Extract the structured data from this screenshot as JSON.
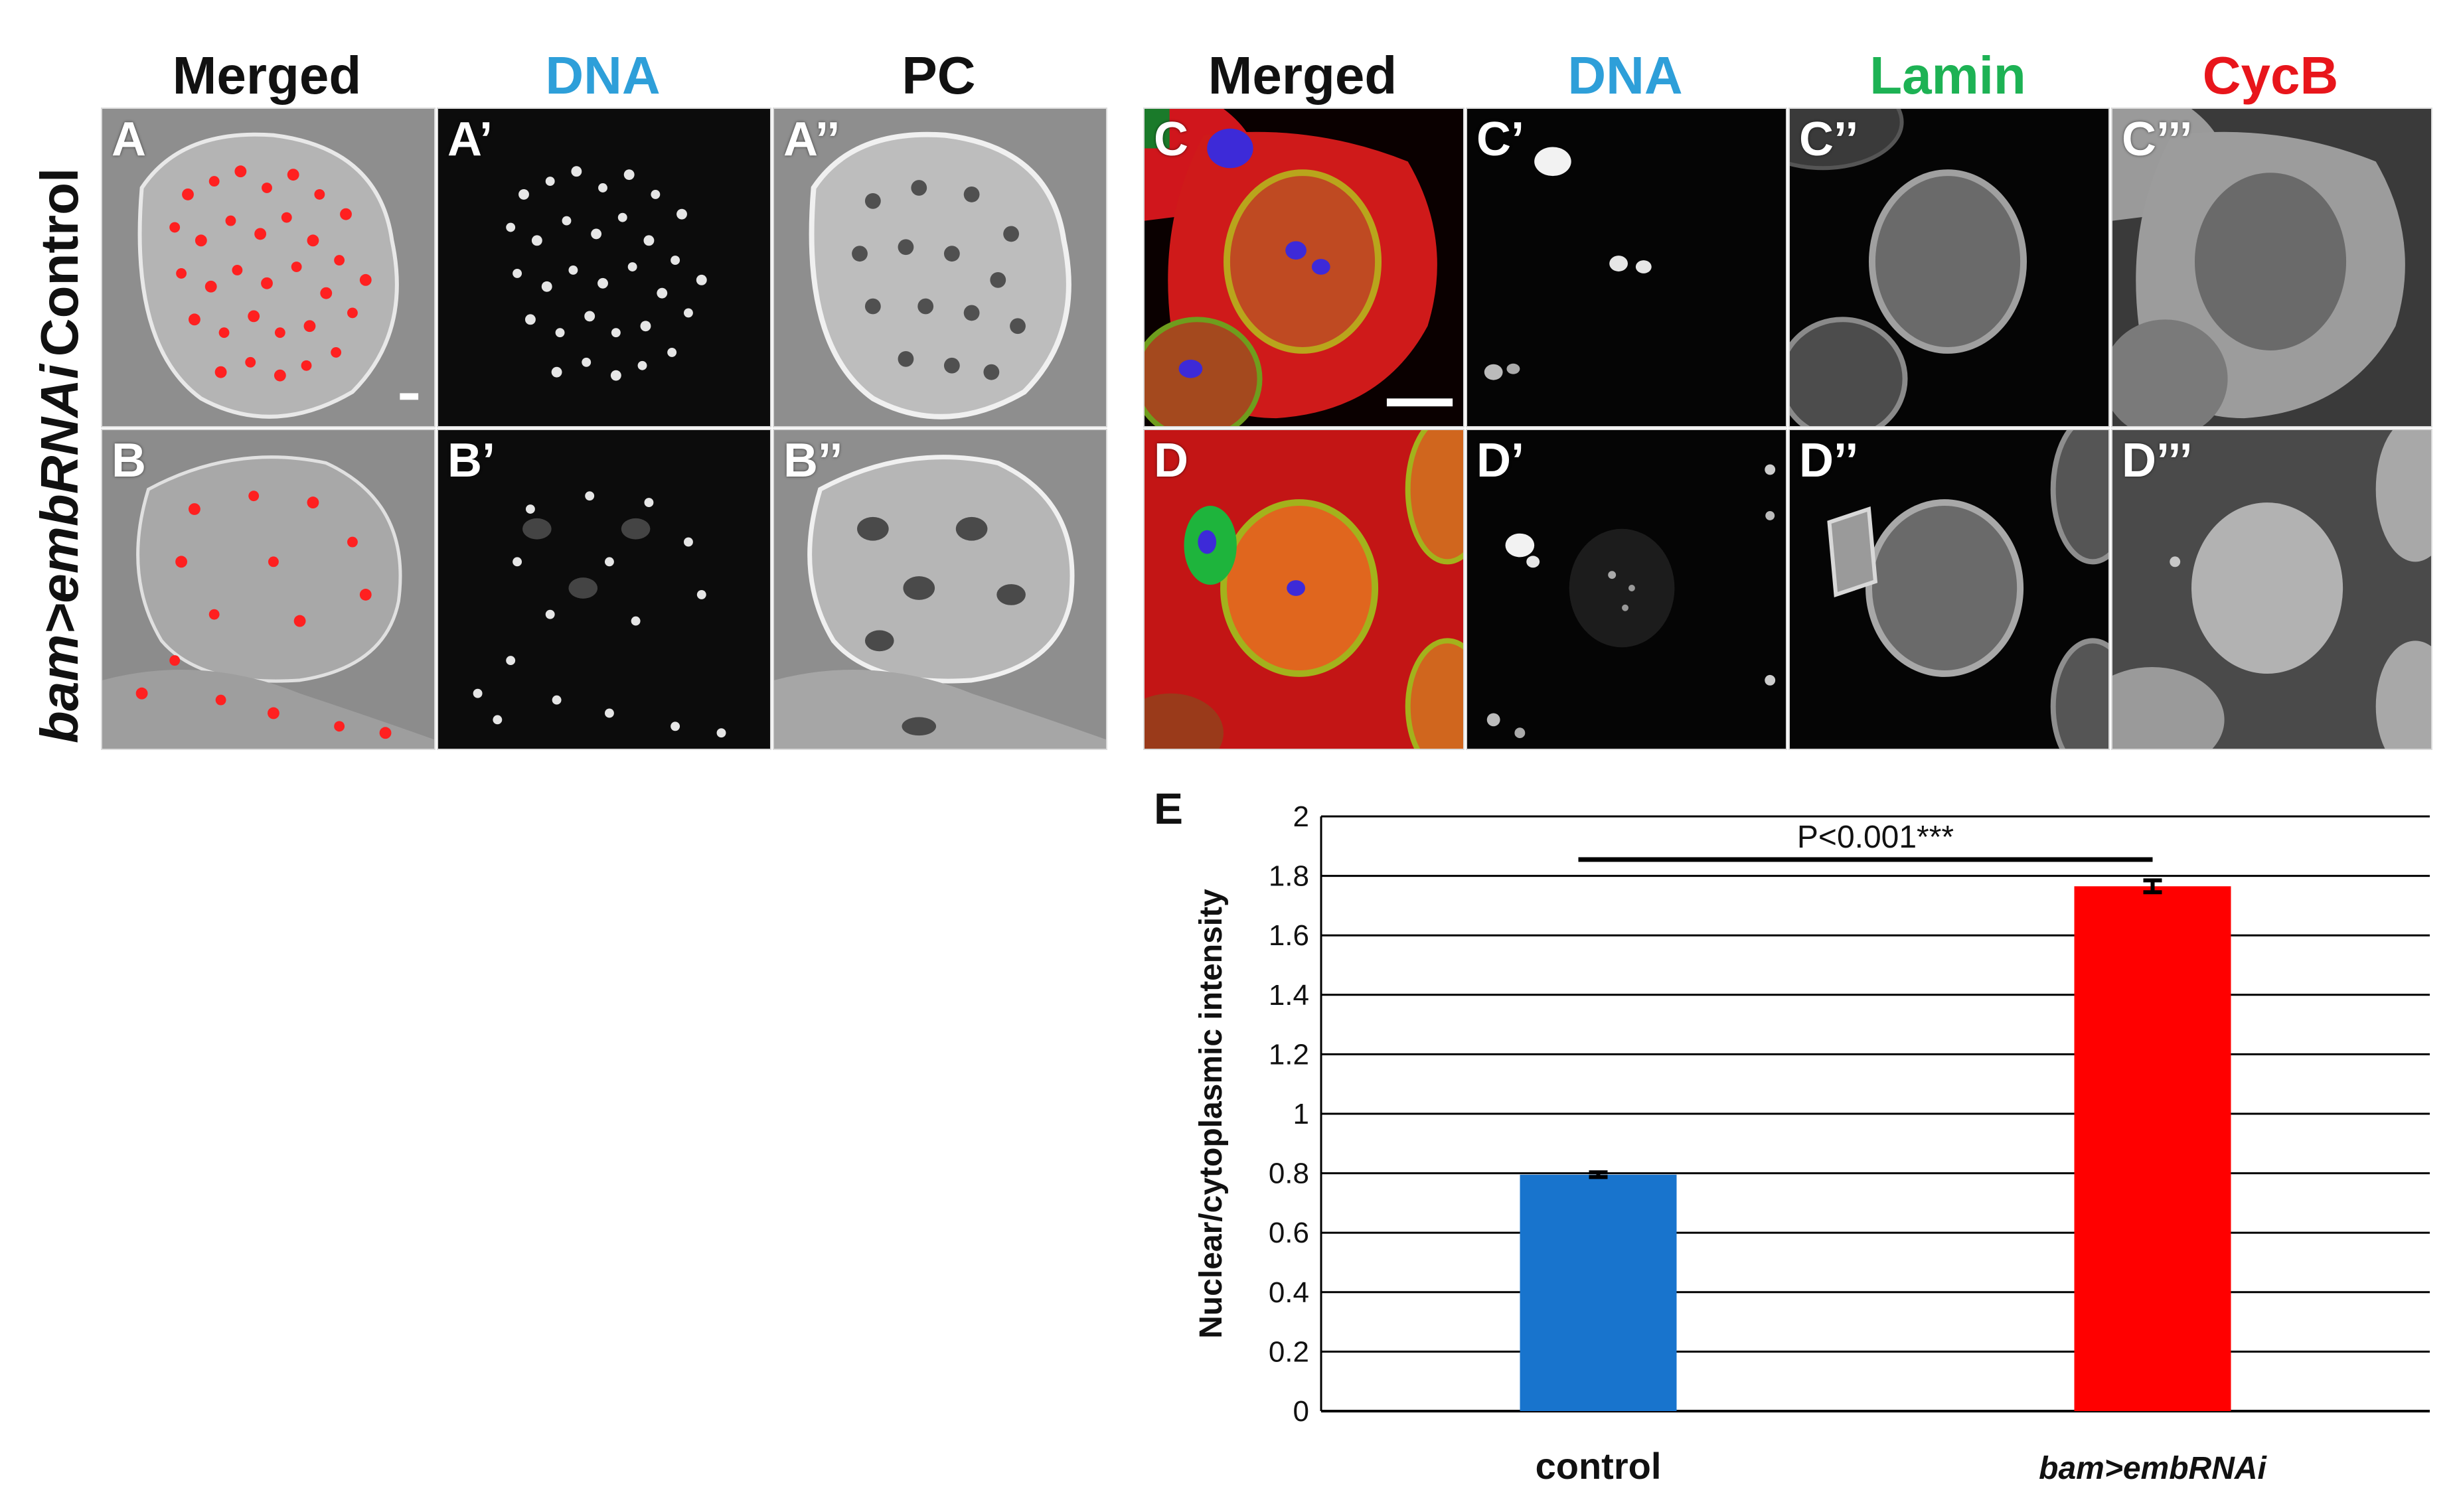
{
  "colors": {
    "dna": "#2e9fd9",
    "lamin": "#1db254",
    "cycb": "#e8151b",
    "black": "#111111",
    "control_bar": "#1874cd",
    "embrnai_bar": "#ff0000"
  },
  "left_figure": {
    "column_headers": [
      "Merged",
      "DNA",
      "PC"
    ],
    "row_headers": [
      "Control",
      "bam>embRNAi"
    ],
    "panel_labels": {
      "A": "A",
      "A1": "A’",
      "A2": "A’’",
      "B": "B",
      "B1": "B’",
      "B2": "B’’"
    }
  },
  "right_figure": {
    "column_headers": [
      "Merged",
      "DNA",
      "Lamin",
      "CycB"
    ],
    "panel_labels": {
      "C": "C",
      "C1": "C’",
      "C2": "C’’",
      "C3": "C’’’",
      "D": "D",
      "D1": "D’",
      "D2": "D’’",
      "D3": "D’’’"
    }
  },
  "chart_panel_label": "E",
  "chart_data": {
    "type": "bar",
    "categories": [
      "control",
      "bam>embRNAi"
    ],
    "values": [
      0.795,
      1.765
    ],
    "errors": [
      0.008,
      0.02
    ],
    "ylabel": "Nuclear/cytoplasmic intensity",
    "xlabel": "",
    "ylim": [
      0,
      2
    ],
    "yticks": [
      "0",
      "0.2",
      "0.4",
      "0.6",
      "0.8",
      "1",
      "1.2",
      "1.4",
      "1.6",
      "1.8",
      "2"
    ],
    "ytick_values": [
      0,
      0.2,
      0.4,
      0.6,
      0.8,
      1,
      1.2,
      1.4,
      1.6,
      1.8,
      2
    ],
    "grid": true,
    "significance": "P<0.001***"
  }
}
